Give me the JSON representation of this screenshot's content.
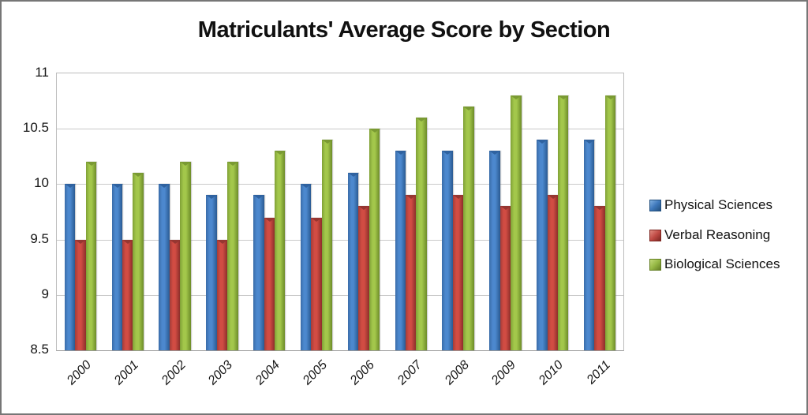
{
  "chart_data": {
    "type": "bar",
    "title": "Matriculants' Average Score by Section",
    "categories": [
      "2000",
      "2001",
      "2002",
      "2003",
      "2004",
      "2005",
      "2006",
      "2007",
      "2008",
      "2009",
      "2010",
      "2011"
    ],
    "series": [
      {
        "name": "Physical Sciences",
        "key": "physical-sciences",
        "values": [
          10.0,
          10.0,
          10.0,
          9.9,
          9.9,
          10.0,
          10.1,
          10.3,
          10.3,
          10.3,
          10.4,
          10.4
        ],
        "color_left": "#3a6ca8",
        "color_light": "#4c88ce",
        "color_right": "#2a5a92",
        "color_notch": "#2f62a0",
        "legend_light": "#7fb0e0",
        "legend_main": "#3e78bb",
        "legend_dark": "#23507f"
      },
      {
        "name": "Verbal Reasoning",
        "key": "verbal-reasoning",
        "values": [
          9.5,
          9.5,
          9.5,
          9.5,
          9.7,
          9.7,
          9.8,
          9.9,
          9.9,
          9.8,
          9.9,
          9.8
        ],
        "color_left": "#a33c38",
        "color_light": "#d14c43",
        "color_right": "#8c2f2b",
        "color_notch": "#963631",
        "legend_light": "#e08a80",
        "legend_main": "#c04b45",
        "legend_dark": "#7e2722"
      },
      {
        "name": "Biological Sciences",
        "key": "biological-sciences",
        "values": [
          10.2,
          10.1,
          10.2,
          10.2,
          10.3,
          10.4,
          10.5,
          10.6,
          10.7,
          10.8,
          10.8,
          10.8
        ],
        "color_left": "#7fa036",
        "color_light": "#a3c74b",
        "color_right": "#6d8c29",
        "color_notch": "#7a9a33",
        "legend_light": "#c2da7a",
        "legend_main": "#96b845",
        "legend_dark": "#647f24"
      }
    ],
    "ylim": [
      8.5,
      11
    ],
    "yticks": [
      {
        "value": 11,
        "label": "11"
      },
      {
        "value": 10.5,
        "label": "10.5"
      },
      {
        "value": 10,
        "label": "10"
      },
      {
        "value": 9.5,
        "label": "9.5"
      },
      {
        "value": 9,
        "label": "9"
      },
      {
        "value": 8.5,
        "label": "8.5"
      }
    ],
    "grid": true,
    "legend_position": "right"
  }
}
